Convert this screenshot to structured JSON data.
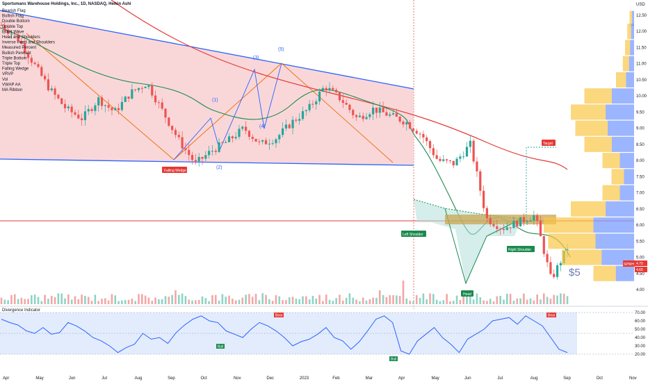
{
  "header": {
    "title": "Sportsmans Warehouse Holdings, Inc., 1D, NASDAQ, Heikin Ashi",
    "currency": "USD"
  },
  "legend_items": [
    "Bearish Flag",
    "Bullish Flag",
    "Double Bottom",
    "Double Top",
    "Elliott Wave",
    "Head and Shoulders",
    "Inverse Head and Shoulders",
    "Measured Percent",
    "Bullish Pennant",
    "Triple Bottom",
    "Triple Top",
    "Falling Wedge",
    "VRVP",
    "Vol",
    "VWAP AA",
    "MA Ribbon"
  ],
  "annotations": {
    "falling_wedge": "Falling Wedge",
    "left_shoulder": "Left Shoulder",
    "head": "Head",
    "right_shoulder": "Right Shoulder",
    "target": "Target",
    "price_note": "$5",
    "wave_labels": [
      "(1)",
      "(2)",
      "(3)",
      "(4)",
      "(5)"
    ],
    "bull": "Bull",
    "bear": "Bear"
  },
  "lower_pane": {
    "title": "Divergence Indicator",
    "yticks": [
      "70.00",
      "60.00",
      "50.00",
      "40.00",
      "30.00",
      "20.00"
    ]
  },
  "price_badges": {
    "ticker": "SPWH",
    "last": "4.70",
    "prev": "4.65"
  },
  "colors": {
    "wedge_fill": "#f7c9cc",
    "wedge_line": "#2962ff",
    "ma200": "#e53935",
    "ma_green": "#1b8a4e",
    "candle_up": "#26a69a",
    "candle_down": "#ef5350",
    "volume_profile_blue": "#7b9cff",
    "volume_profile_orange": "#f9c646",
    "rsi_line": "#2962ff"
  },
  "chart_data": [
    {
      "type": "line",
      "title": "Sportsmans Warehouse Holdings, Inc., 1D, NASDAQ, Heikin Ashi",
      "x_ticks": [
        "Apr",
        "May",
        "Jun",
        "Jul",
        "Aug",
        "Sep",
        "Oct",
        "Nov",
        "Dec",
        "2023",
        "Feb",
        "Mar",
        "Apr",
        "May",
        "Jun",
        "Jul",
        "Aug",
        "Sep",
        "Oct",
        "Nov"
      ],
      "y_ticks": [
        "USD",
        "12.50",
        "12.00",
        "11.50",
        "11.00",
        "10.50",
        "10.00",
        "9.50",
        "9.00",
        "8.50",
        "8.00",
        "7.50",
        "7.00",
        "6.50",
        "6.00",
        "5.50",
        "5.00",
        "4.50",
        "4.00"
      ],
      "ylim": [
        3.7,
        12.7
      ],
      "series": [
        {
          "name": "SPWH",
          "x": [
            0,
            10,
            20,
            30,
            40,
            50,
            60,
            70,
            80,
            90,
            100,
            110,
            120,
            130,
            140,
            150,
            160,
            170,
            180,
            190,
            200,
            210,
            220,
            230,
            240,
            250,
            260,
            270,
            280,
            290,
            300,
            310,
            320,
            330,
            340,
            345
          ],
          "values": [
            12.2,
            11.8,
            11.0,
            10.2,
            9.6,
            9.3,
            9.9,
            9.5,
            10.1,
            10.4,
            9.5,
            8.6,
            7.9,
            8.3,
            8.6,
            9.0,
            8.5,
            8.7,
            9.2,
            9.6,
            10.3,
            9.9,
            9.3,
            9.6,
            9.4,
            9.2,
            8.8,
            8.0,
            7.9,
            8.5,
            6.2,
            5.9,
            6.1,
            6.3,
            4.3,
            5.3
          ],
          "note": "approximate close path; x = trading-session index"
        }
      ],
      "volume_profile": {
        "price_levels": [
          12.4,
          12.0,
          11.5,
          11.0,
          10.5,
          10.0,
          9.5,
          9.0,
          8.5,
          8.0,
          7.5,
          7.0,
          6.5,
          6.0,
          5.5,
          5.0,
          4.5
        ],
        "values": [
          2,
          3,
          4,
          5,
          8,
          22,
          28,
          26,
          22,
          14,
          10,
          14,
          28,
          40,
          38,
          32,
          18
        ]
      }
    },
    {
      "type": "line",
      "title": "Divergence Indicator",
      "ylim": [
        15,
        72
      ],
      "y_ticks": [
        70,
        60,
        50,
        40,
        30,
        20
      ],
      "series": [
        {
          "name": "RSI",
          "values": [
            62,
            58,
            55,
            48,
            45,
            52,
            44,
            46,
            58,
            54,
            48,
            40,
            36,
            30,
            22,
            28,
            32,
            45,
            38,
            40,
            33,
            46,
            55,
            62,
            66,
            60,
            58,
            48,
            44,
            40,
            50,
            58,
            54,
            48,
            40,
            30,
            35,
            38,
            44,
            52,
            40,
            36,
            26,
            35,
            48,
            62,
            66,
            58,
            24,
            20,
            36,
            44,
            52,
            40,
            32,
            22,
            38,
            44,
            50,
            60,
            62,
            64,
            56,
            66,
            60,
            54,
            40,
            26,
            22
          ]
        }
      ]
    }
  ]
}
